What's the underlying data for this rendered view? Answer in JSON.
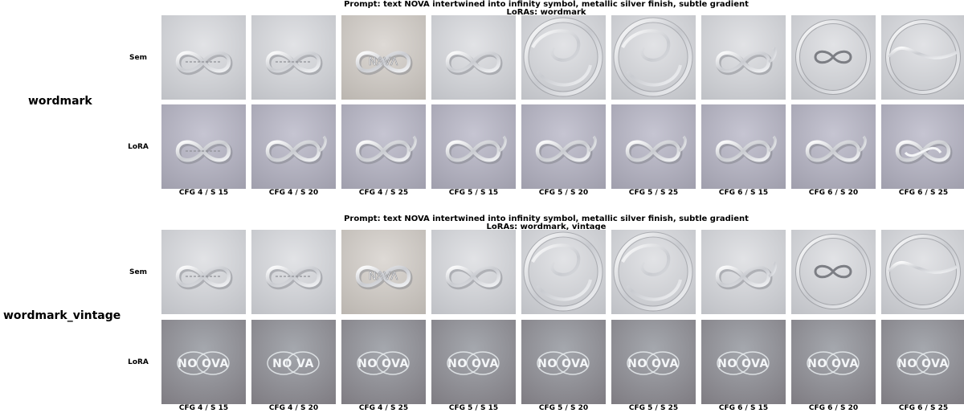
{
  "blocks": [
    {
      "name": "wordmark",
      "title_line1": "Prompt: text NOVA intertwined into infinity symbol, metallic silver finish, subtle gradient",
      "title_line2": "LoRAs: wordmark",
      "rows": [
        {
          "label": "Sem",
          "cells": [
            {
              "motif": "infinity-text",
              "tone": "cool"
            },
            {
              "motif": "infinity-text",
              "tone": "cool"
            },
            {
              "motif": "nova-text-infinity",
              "tone": "warm"
            },
            {
              "motif": "infinity",
              "tone": "cool"
            },
            {
              "motif": "swirl-circle",
              "tone": "cool"
            },
            {
              "motif": "swirl-circle",
              "tone": "cool"
            },
            {
              "motif": "infinity-tail",
              "tone": "cool"
            },
            {
              "motif": "circle-infinity",
              "tone": "cool"
            },
            {
              "motif": "circle-wave",
              "tone": "cool"
            }
          ]
        },
        {
          "label": "LoRA",
          "cells": [
            {
              "motif": "infinity-text",
              "tone": "lavender"
            },
            {
              "motif": "infinity-tail",
              "tone": "lavender"
            },
            {
              "motif": "infinity-tail",
              "tone": "lavender"
            },
            {
              "motif": "infinity-tail",
              "tone": "lavender"
            },
            {
              "motif": "infinity-tail",
              "tone": "lavender"
            },
            {
              "motif": "infinity-tail",
              "tone": "lavender"
            },
            {
              "motif": "infinity-tail",
              "tone": "lavender"
            },
            {
              "motif": "infinity-tail",
              "tone": "lavender"
            },
            {
              "motif": "infinity-double",
              "tone": "lavender"
            }
          ]
        }
      ],
      "col_labels": [
        "CFG 4 / S 15",
        "CFG 4 / S 20",
        "CFG 4 / S 25",
        "CFG 5 / S 15",
        "CFG 5 / S 20",
        "CFG 5 / S 25",
        "CFG 6 / S 15",
        "CFG 6 / S 20",
        "CFG 6 / S 25"
      ]
    },
    {
      "name": "wordmark_vintage",
      "title_line1": "Prompt: text NOVA intertwined into infinity symbol, metallic silver finish, subtle gradient",
      "title_line2": "LoRAs: wordmark, vintage",
      "rows": [
        {
          "label": "Sem",
          "cells": [
            {
              "motif": "infinity-text",
              "tone": "cool"
            },
            {
              "motif": "infinity-text",
              "tone": "cool"
            },
            {
              "motif": "nova-text-infinity",
              "tone": "warm"
            },
            {
              "motif": "infinity",
              "tone": "cool"
            },
            {
              "motif": "swirl-circle",
              "tone": "cool"
            },
            {
              "motif": "swirl-circle",
              "tone": "cool"
            },
            {
              "motif": "infinity-tail",
              "tone": "cool"
            },
            {
              "motif": "circle-infinity",
              "tone": "cool"
            },
            {
              "motif": "circle-wave",
              "tone": "cool"
            }
          ]
        },
        {
          "label": "LoRA",
          "cells": [
            {
              "motif": "nova-logo",
              "tone": "vintage",
              "text": "NO OVA"
            },
            {
              "motif": "nova-logo",
              "tone": "vintage",
              "text": "NO VA"
            },
            {
              "motif": "nova-logo",
              "tone": "vintage",
              "text": "NO OVA"
            },
            {
              "motif": "nova-logo",
              "tone": "vintage",
              "text": "NO OVA"
            },
            {
              "motif": "nova-logo",
              "tone": "vintage",
              "text": "NO OVA"
            },
            {
              "motif": "nova-logo",
              "tone": "vintage",
              "text": "NO OVA"
            },
            {
              "motif": "nova-logo",
              "tone": "vintage",
              "text": "NO OVA"
            },
            {
              "motif": "nova-logo",
              "tone": "vintage",
              "text": "NO OVA"
            },
            {
              "motif": "nova-logo",
              "tone": "vintage",
              "text": "NO OVA"
            }
          ]
        }
      ],
      "col_labels": [
        "CFG 4 / S 15",
        "CFG 4 / S 20",
        "CFG 4 / S 25",
        "CFG 5 / S 15",
        "CFG 5 / S 20",
        "CFG 5 / S 25",
        "CFG 6 / S 15",
        "CFG 6 / S 20",
        "CFG 6 / S 25"
      ]
    }
  ],
  "tones": {
    "cool": [
      "#e2e3e6",
      "#bdbfc4"
    ],
    "warm": [
      "#dedad6",
      "#b9b4ae"
    ],
    "lavender": [
      "#c6c5d2",
      "#9e9dab"
    ],
    "vintage": [
      "#a5a8ae",
      "#7d7a80"
    ]
  }
}
